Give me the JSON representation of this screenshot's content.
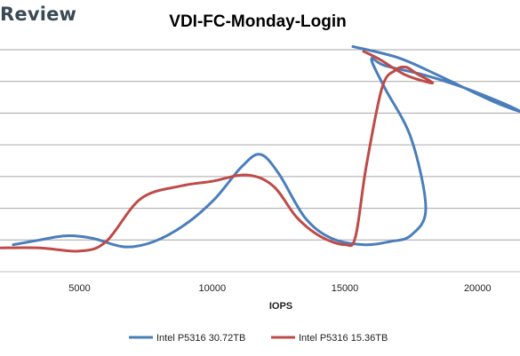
{
  "brand": "Review",
  "chart_data": {
    "type": "line",
    "title": "VDI-FC-Monday-Login",
    "xlabel": "IOPS",
    "ylabel": "",
    "xlim": [
      2000,
      21600
    ],
    "ylim": [
      0,
      7
    ],
    "xticks": [
      5000,
      10000,
      15000,
      20000
    ],
    "grid": true,
    "legend_position": "bottom",
    "series": [
      {
        "name": "Intel P5316 30.72TB",
        "color": "#4a7ebb",
        "points": [
          [
            2500,
            0.85
          ],
          [
            3500,
            1.0
          ],
          [
            4500,
            1.13
          ],
          [
            5500,
            1.05
          ],
          [
            6700,
            0.78
          ],
          [
            7800,
            0.95
          ],
          [
            9000,
            1.5
          ],
          [
            10100,
            2.3
          ],
          [
            11100,
            3.3
          ],
          [
            11800,
            3.7
          ],
          [
            12500,
            3.1
          ],
          [
            13500,
            1.7
          ],
          [
            14500,
            1.05
          ],
          [
            15700,
            0.85
          ],
          [
            16700,
            0.95
          ],
          [
            17500,
            1.15
          ],
          [
            18050,
            2.0
          ],
          [
            17500,
            4.2
          ],
          [
            16500,
            5.8
          ],
          [
            16000,
            6.7
          ],
          [
            16500,
            6.5
          ],
          [
            18000,
            6.2
          ],
          [
            19500,
            5.8
          ],
          [
            21000,
            5.3
          ],
          [
            21600,
            5.05
          ],
          [
            20500,
            5.4
          ],
          [
            18500,
            6.2
          ],
          [
            17000,
            6.75
          ],
          [
            15300,
            7.1
          ]
        ]
      },
      {
        "name": "Intel P5316 15.36TB",
        "color": "#be4b48",
        "points": [
          [
            2000,
            0.75
          ],
          [
            3500,
            0.75
          ],
          [
            5000,
            0.65
          ],
          [
            6000,
            0.95
          ],
          [
            7300,
            2.3
          ],
          [
            8800,
            2.7
          ],
          [
            10000,
            2.85
          ],
          [
            11300,
            3.05
          ],
          [
            12300,
            2.7
          ],
          [
            13200,
            1.7
          ],
          [
            14100,
            1.1
          ],
          [
            15000,
            0.85
          ],
          [
            15400,
            1.1
          ],
          [
            15800,
            3.3
          ],
          [
            16400,
            5.8
          ],
          [
            16900,
            6.35
          ],
          [
            17300,
            6.45
          ],
          [
            17700,
            6.25
          ],
          [
            18300,
            5.95
          ],
          [
            17300,
            6.2
          ],
          [
            16300,
            6.7
          ],
          [
            15700,
            6.95
          ]
        ]
      }
    ]
  }
}
